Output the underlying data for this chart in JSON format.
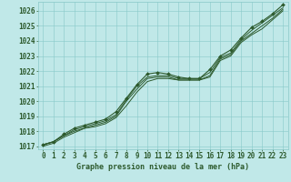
{
  "background_color": "#c0e8e8",
  "grid_color": "#88c8c8",
  "line_color": "#2d5a2d",
  "title": "Graphe pression niveau de la mer (hPa)",
  "xlim": [
    -0.5,
    23.5
  ],
  "ylim": [
    1016.8,
    1026.6
  ],
  "yticks": [
    1017,
    1018,
    1019,
    1020,
    1021,
    1022,
    1023,
    1024,
    1025,
    1026
  ],
  "xticks": [
    0,
    1,
    2,
    3,
    4,
    5,
    6,
    7,
    8,
    9,
    10,
    11,
    12,
    13,
    14,
    15,
    16,
    17,
    18,
    19,
    20,
    21,
    22,
    23
  ],
  "series": [
    [
      1017.1,
      1017.3,
      1017.8,
      1018.2,
      1018.4,
      1018.6,
      1018.8,
      1019.3,
      1020.2,
      1021.1,
      1021.8,
      1021.9,
      1021.8,
      1021.6,
      1021.5,
      1021.5,
      1022.1,
      1023.0,
      1023.4,
      1024.2,
      1024.9,
      1025.3,
      1025.8,
      1026.4
    ],
    [
      1017.1,
      1017.3,
      1017.7,
      1018.1,
      1018.3,
      1018.5,
      1018.7,
      1019.1,
      1020.1,
      1021.0,
      1021.6,
      1021.7,
      1021.7,
      1021.5,
      1021.5,
      1021.5,
      1021.9,
      1022.9,
      1023.2,
      1024.1,
      1024.7,
      1025.2,
      1025.7,
      1026.2
    ],
    [
      1017.1,
      1017.3,
      1017.7,
      1018.0,
      1018.2,
      1018.4,
      1018.6,
      1019.0,
      1020.0,
      1020.8,
      1021.5,
      1021.6,
      1021.6,
      1021.4,
      1021.4,
      1021.4,
      1021.7,
      1022.8,
      1023.1,
      1024.0,
      1024.5,
      1025.0,
      1025.5,
      1026.1
    ],
    [
      1017.0,
      1017.2,
      1017.6,
      1017.9,
      1018.2,
      1018.3,
      1018.5,
      1018.9,
      1019.7,
      1020.6,
      1021.3,
      1021.5,
      1021.5,
      1021.4,
      1021.4,
      1021.4,
      1021.6,
      1022.7,
      1023.0,
      1023.9,
      1024.4,
      1024.8,
      1025.4,
      1026.0
    ]
  ]
}
